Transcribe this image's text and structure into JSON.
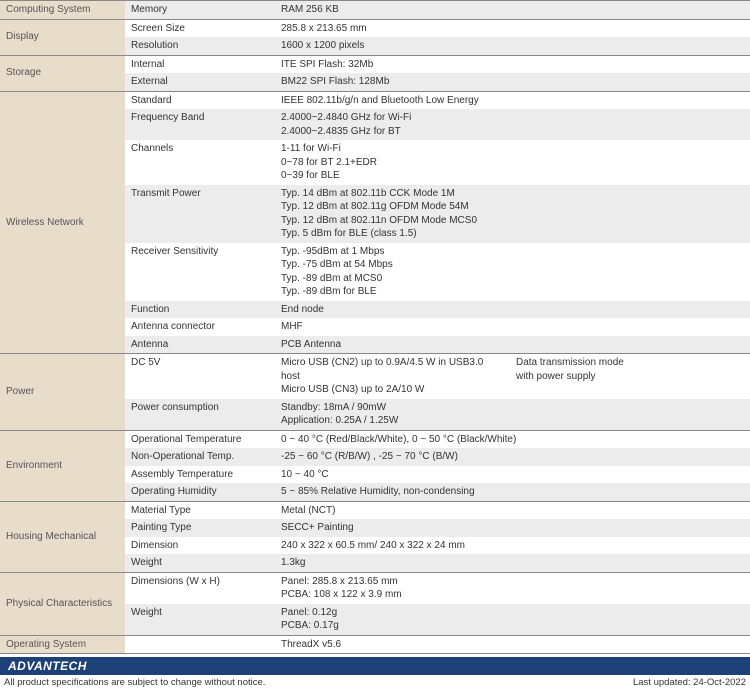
{
  "colors": {
    "section_bg": "#e8dccb",
    "row_alt_bg": "#ececec",
    "border": "#888888",
    "footer_bar": "#1d4076",
    "text": "#333333"
  },
  "sections": [
    {
      "name": "Computing System",
      "rows": [
        {
          "attr": "Memory",
          "val": "RAM 256 KB",
          "alt": true
        }
      ]
    },
    {
      "name": "Display",
      "rows": [
        {
          "attr": "Screen Size",
          "val": "285.8 x 213.65 mm"
        },
        {
          "attr": "Resolution",
          "val": "1600 x 1200 pixels",
          "alt": true
        }
      ]
    },
    {
      "name": "Storage",
      "rows": [
        {
          "attr": "Internal",
          "val": "ITE SPI Flash: 32Mb"
        },
        {
          "attr": "External",
          "val": "BM22 SPI Flash: 128Mb",
          "alt": true
        }
      ]
    },
    {
      "name": "Wireless Network",
      "rows": [
        {
          "attr": "Standard",
          "val": "IEEE 802.11b/g/n and Bluetooth Low Energy"
        },
        {
          "attr": "Frequency Band",
          "val": "2.4000~2.4840 GHz for Wi-Fi\n2.4000~2.4835 GHz for BT",
          "alt": true
        },
        {
          "attr": "Channels",
          "val": "1-11 for Wi-Fi\n0~78 for BT 2.1+EDR\n0~39 for BLE"
        },
        {
          "attr": "Transmit Power",
          "val": "Typ. 14 dBm at 802.11b CCK Mode 1M\nTyp. 12 dBm at 802.11g OFDM Mode 54M\nTyp. 12 dBm at 802.11n OFDM Mode MCS0\nTyp. 5 dBm for BLE (class 1.5)",
          "alt": true
        },
        {
          "attr": "Receiver Sensitivity",
          "val": "Typ. -95dBm at 1 Mbps\nTyp. -75 dBm at 54 Mbps\nTyp. -89 dBm at MCS0\nTyp. -89 dBm for BLE"
        },
        {
          "attr": "Function",
          "val": "End node",
          "alt": true
        },
        {
          "attr": "Antenna connector",
          "val": "MHF"
        },
        {
          "attr": "Antenna",
          "val": "PCB Antenna",
          "alt": true
        }
      ]
    },
    {
      "name": "Power",
      "rows": [
        {
          "attr": "DC 5V",
          "val": "Micro USB (CN2) up to 0.9A/4.5 W in USB3.0 host\nMicro USB (CN3) up to 2A/10 W",
          "note": "Data transmission mode\nwith power supply"
        },
        {
          "attr": "Power consumption",
          "val": "Standby: 18mA / 90mW\nApplication: 0.25A / 1.25W",
          "alt": true
        }
      ]
    },
    {
      "name": "Environment",
      "rows": [
        {
          "attr": "Operational Temperature",
          "val": "0 ~ 40 °C (Red/Black/White), 0 ~ 50 °C (Black/White)"
        },
        {
          "attr": "Non-Operational Temp.",
          "val": "-25 ~ 60 °C (R/B/W) , -25 ~ 70 °C (B/W)",
          "alt": true
        },
        {
          "attr": "Assembly Temperature",
          "val": "10 ~ 40 °C"
        },
        {
          "attr": "Operating Humidity",
          "val": "5 ~ 85% Relative Humidity, non-condensing",
          "alt": true
        }
      ]
    },
    {
      "name": "Housing Mechanical",
      "rows": [
        {
          "attr": "Material Type",
          "val": "Metal (NCT)"
        },
        {
          "attr": "Painting Type",
          "val": "SECC+ Painting",
          "alt": true
        },
        {
          "attr": "Dimension",
          "val": "240 x 322 x 60.5 mm/ 240 x 322 x 24 mm"
        },
        {
          "attr": "Weight",
          "val": "1.3kg",
          "alt": true
        }
      ]
    },
    {
      "name": "Physical Characteristics",
      "rows": [
        {
          "attr": "Dimensions (W x H)",
          "val": "Panel: 285.8 x 213.65 mm\nPCBA: 108 x 122 x 3.9 mm"
        },
        {
          "attr": "Weight",
          "val": "Panel: 0.12g\nPCBA: 0.17g",
          "alt": true
        }
      ]
    },
    {
      "name": "Operating System",
      "rows": [
        {
          "attr": "",
          "val": "ThreadX v5.6"
        }
      ]
    }
  ],
  "footer": {
    "logo": "ADVANTECH",
    "disclaimer": "All product specifications are subject to change without notice.",
    "updated": "Last updated: 24-Oct-2022"
  }
}
